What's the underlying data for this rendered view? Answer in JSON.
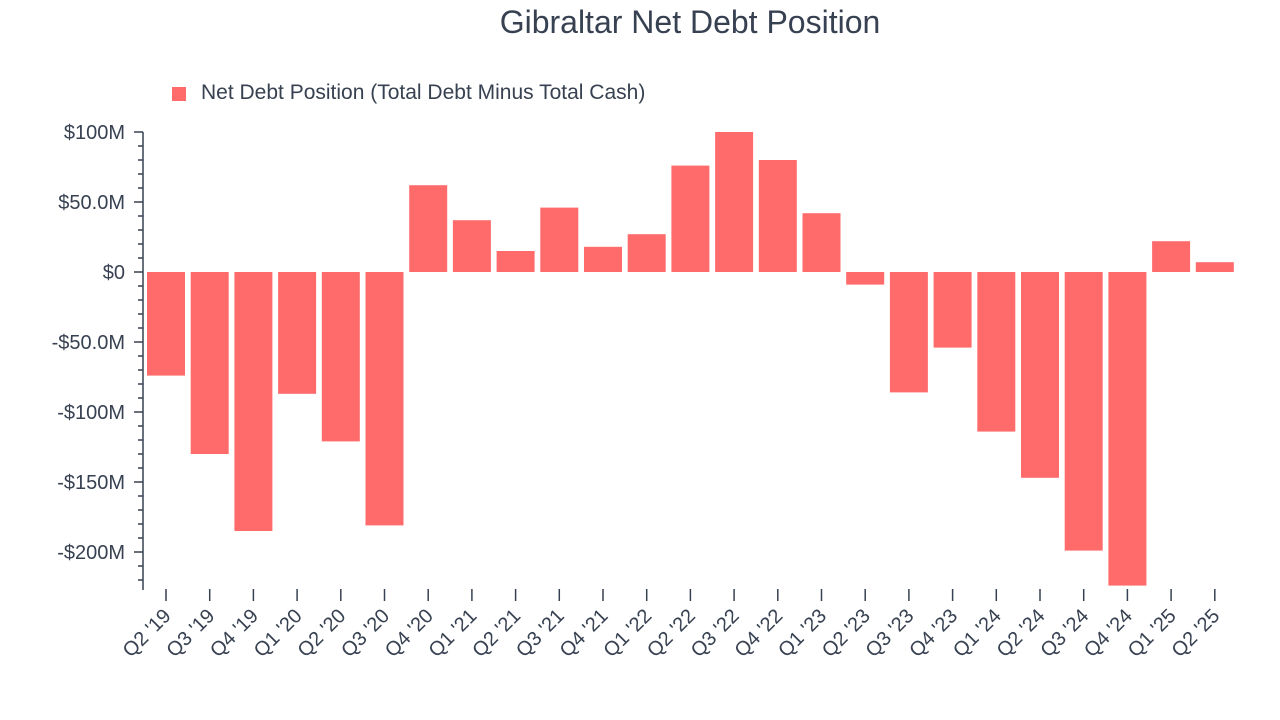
{
  "chart_data": {
    "type": "bar",
    "title": "Gibraltar Net Debt Position",
    "legend_position": "top-left",
    "series": [
      {
        "name": "Net Debt Position (Total Debt Minus Total Cash)",
        "color": "#ff6b6b",
        "values": [
          -74,
          -130,
          -185,
          -87,
          -121,
          -181,
          62,
          37,
          15,
          46,
          18,
          27,
          76,
          100,
          80,
          42,
          -9,
          -86,
          -54,
          -114,
          -147,
          -199,
          -224,
          22,
          7
        ]
      }
    ],
    "categories": [
      "Q2 '19",
      "Q3 '19",
      "Q4 '19",
      "Q1 '20",
      "Q2 '20",
      "Q3 '20",
      "Q4 '20",
      "Q1 '21",
      "Q2 '21",
      "Q3 '21",
      "Q4 '21",
      "Q1 '22",
      "Q2 '22",
      "Q3 '22",
      "Q4 '22",
      "Q1 '23",
      "Q2 '23",
      "Q3 '23",
      "Q4 '23",
      "Q1 '24",
      "Q2 '24",
      "Q3 '24",
      "Q4 '24",
      "Q1 '25",
      "Q2 '25"
    ],
    "y_ticks": [
      {
        "value": 100,
        "label": "$100M"
      },
      {
        "value": 50,
        "label": "$50.0M"
      },
      {
        "value": 0,
        "label": "$0"
      },
      {
        "value": -50,
        "label": "-$50.0M"
      },
      {
        "value": -100,
        "label": "-$100M"
      },
      {
        "value": -150,
        "label": "-$150M"
      },
      {
        "value": -200,
        "label": "-$200M"
      }
    ],
    "ylim": [
      -220,
      100
    ],
    "minor_tick_step": 10,
    "xlabel": "",
    "ylabel": "",
    "grid": false
  }
}
